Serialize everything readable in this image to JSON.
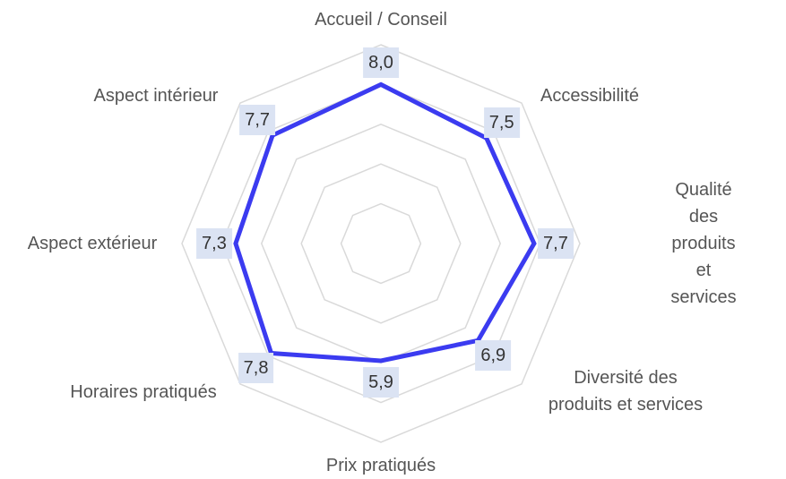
{
  "chart_data": {
    "type": "radar",
    "categories": [
      "Accueil / Conseil",
      "Accessibilité",
      "Qualité des\nproduits et services",
      "Diversité des\nproduits et services",
      "Prix pratiqués",
      "Horaires pratiqués",
      "Aspect extérieur",
      "Aspect intérieur"
    ],
    "series": [
      {
        "color": "#3b3bf0",
        "values": [
          8.0,
          7.5,
          7.7,
          6.9,
          5.9,
          7.8,
          7.3,
          7.7
        ],
        "value_labels": [
          "8,0",
          "7,5",
          "7,7",
          "6,9",
          "5,9",
          "7,8",
          "7,3",
          "7,7"
        ]
      }
    ],
    "rlim": [
      0,
      10
    ],
    "rticks": [
      2,
      4,
      6,
      8,
      10
    ],
    "grid": true
  }
}
